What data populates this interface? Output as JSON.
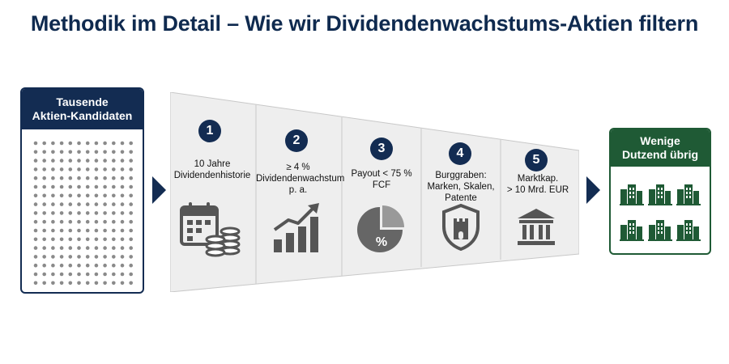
{
  "title": "Methodik im Detail – Wie wir Dividendenwachstums-Aktien filtern",
  "start_box": {
    "line1": "Tausende",
    "line2": "Aktien-Kandidaten"
  },
  "end_box": {
    "line1": "Wenige",
    "line2": "Dutzend übrig"
  },
  "stages": [
    {
      "number": "1",
      "line1": "10 Jahre",
      "line2": "Dividendenhistorie",
      "line3": "",
      "icon": "calendar-coins-icon"
    },
    {
      "number": "2",
      "line1": "≥ 4 %",
      "line2": "Dividendenwachstum",
      "line3": "p. a.",
      "icon": "growth-chart-icon"
    },
    {
      "number": "3",
      "line1": "Payout < 75 %",
      "line2": "FCF",
      "line3": "",
      "icon": "pie-percent-icon"
    },
    {
      "number": "4",
      "line1": "Burggraben:",
      "line2": "Marken, Skalen,",
      "line3": "Patente",
      "icon": "castle-shield-icon"
    },
    {
      "number": "5",
      "line1": "Marktkap.",
      "line2": "> 10 Mrd. EUR",
      "line3": "",
      "icon": "bank-icon"
    }
  ],
  "pie_label": "%",
  "colors": {
    "navy": "#132c52",
    "green": "#1f5a35",
    "icon_gray": "#555555",
    "panel": "#f2f2f2"
  }
}
